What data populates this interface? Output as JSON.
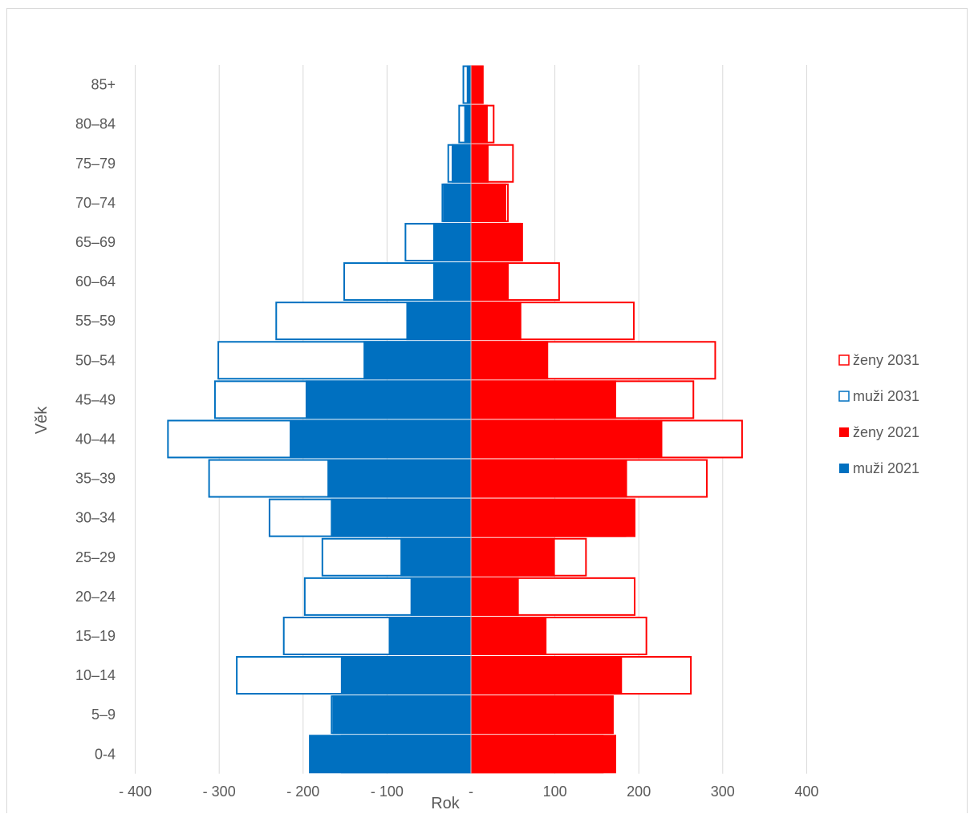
{
  "chart_data": {
    "type": "bar",
    "orientation": "horizontal",
    "title": "",
    "xlabel": "Rok",
    "ylabel": "Věk",
    "xlim": [
      -400,
      400
    ],
    "x_ticks": [
      -400,
      -300,
      -200,
      -100,
      0,
      100,
      200,
      300,
      400
    ],
    "x_tick_labels": [
      "- 400",
      "- 300",
      "- 200",
      "- 100",
      "-",
      "100",
      "200",
      "300",
      "400"
    ],
    "grid": "vertical",
    "legend_position": "right",
    "categories": [
      "0-4",
      "5–9",
      "10–14",
      "15–19",
      "20–24",
      "25–29",
      "30–34",
      "35–39",
      "40–44",
      "45–49",
      "50–54",
      "55–59",
      "60–64",
      "65–69",
      "70–74",
      "75–79",
      "80–84",
      "85+"
    ],
    "series": [
      {
        "name": "ženy 2031",
        "style": "outline",
        "color": "#ff0000",
        "values": [
          158,
          170,
          263,
          210,
          196,
          138,
          185,
          282,
          324,
          266,
          292,
          195,
          106,
          60,
          45,
          51,
          28,
          15
        ]
      },
      {
        "name": "muži 2031",
        "style": "outline",
        "color": "#0070c0",
        "values": [
          -155,
          -167,
          -280,
          -224,
          -199,
          -178,
          -241,
          -313,
          -362,
          -306,
          -302,
          -233,
          -152,
          -79,
          -35,
          -28,
          -15,
          -10
        ]
      },
      {
        "name": "ženy 2021",
        "style": "fill",
        "color": "#ff0000",
        "values": [
          173,
          170,
          180,
          90,
          57,
          100,
          196,
          186,
          228,
          173,
          92,
          60,
          45,
          62,
          42,
          21,
          20,
          15
        ]
      },
      {
        "name": "muži 2021",
        "style": "fill",
        "color": "#0070c0",
        "values": [
          -193,
          -165,
          -155,
          -98,
          -72,
          -84,
          -167,
          -171,
          -216,
          -197,
          -128,
          -77,
          -45,
          -45,
          -33,
          -23,
          -8,
          -5
        ]
      }
    ]
  }
}
